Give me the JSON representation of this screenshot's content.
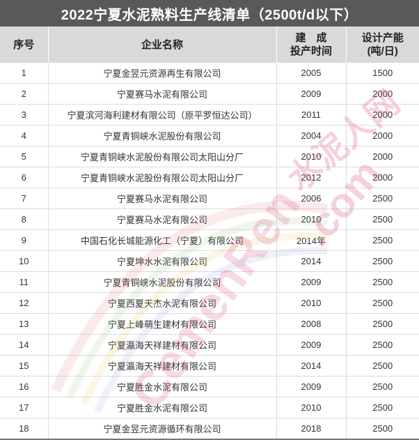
{
  "title": "2022宁夏水泥熟料生产线清单（2500t/d以下）",
  "columns": [
    "序号",
    "企业名称",
    "建　成\n投产时间",
    "设计产能\n(吨/日)"
  ],
  "rows": [
    [
      "1",
      "宁夏金昱元资源再生有限公司",
      "2005",
      "1500"
    ],
    [
      "2",
      "宁夏赛马水泥有限公司",
      "2009",
      "2000"
    ],
    [
      "3",
      "宁夏滨河海利建材有限公司（原平罗恒达公司）",
      "2011",
      "2000"
    ],
    [
      "4",
      "宁夏青铜峡水泥股份有限公司",
      "2004",
      "2000"
    ],
    [
      "5",
      "宁夏青铜峡水泥股份有限公司太阳山分厂",
      "2010",
      "2000"
    ],
    [
      "6",
      "宁夏青铜峡水泥股份有限公司太阳山分厂",
      "2012",
      "2000"
    ],
    [
      "7",
      "宁夏赛马水泥有限公司",
      "2006",
      "2500"
    ],
    [
      "8",
      "宁夏赛马水泥有限公司",
      "2010",
      "2500"
    ],
    [
      "9",
      "中国石化长城能源化工（宁夏）有限公司",
      "2014年",
      "2500"
    ],
    [
      "10",
      "宁夏坤水水泥有限公司",
      "2014",
      "2500"
    ],
    [
      "11",
      "宁夏青铜峡水泥股份有限公司",
      "2009",
      "2500"
    ],
    [
      "12",
      "宁夏西夏天杰水泥有限公司",
      "2010",
      "2500"
    ],
    [
      "13",
      "宁夏上峰萌生建材有限公司",
      "2008",
      "2500"
    ],
    [
      "14",
      "宁夏瀛海天祥建材有限公司",
      "2009",
      "2500"
    ],
    [
      "15",
      "宁夏瀛海天祥建材有限公司",
      "2014",
      "2500"
    ],
    [
      "16",
      "宁夏胜金水泥有限公司",
      "2009",
      "2500"
    ],
    [
      "17",
      "宁夏胜金水泥有限公司",
      "2010",
      "2500"
    ],
    [
      "18",
      "宁夏金昱元资源循环有限公司",
      "2018",
      "2500"
    ]
  ],
  "watermark": {
    "cn": "水泥人网",
    "dotcom": ".com",
    "latin": "CemenRen"
  },
  "colors": {
    "title_bg": "#595959",
    "header_bg": "#d9d9d9",
    "watermark": "#d94a7a"
  }
}
